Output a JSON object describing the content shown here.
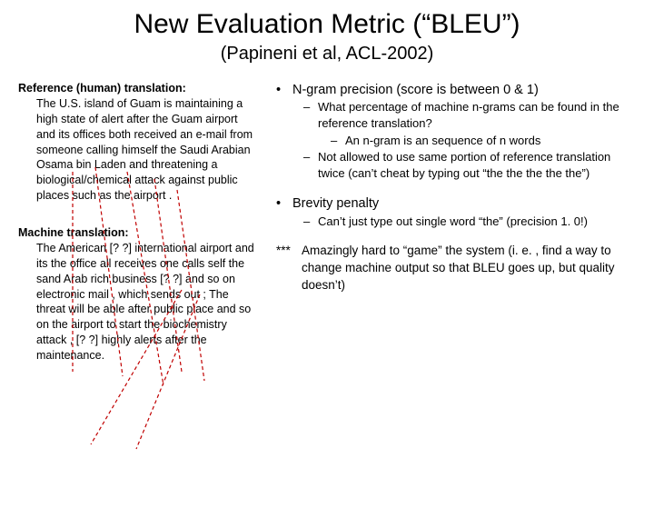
{
  "title": "New Evaluation Metric (“BLEU”)",
  "subtitle": "(Papineni et al, ACL-2002)",
  "left": {
    "ref_heading": "Reference (human) translation:",
    "ref_text": "The U.S. island of Guam is maintaining a high state of alert after the Guam airport and its offices both received an e-mail from someone calling himself the Saudi Arabian Osama bin Laden and threatening a biological/chemical attack against public places such as the airport .",
    "mt_heading": "Machine translation:",
    "mt_text": "The American [? ?] international airport and its the office all receives one calls self the sand Arab rich business [? ?] and so on electronic mail , which sends out ; The threat will be able after public place and so on the airport to start the biochemistry attack , [? ?] highly alerts after the maintenance."
  },
  "right": {
    "ngram": {
      "label": "N-gram precision (score is between 0 & 1)",
      "b1": "What percentage of machine n-grams can be found in the reference translation?",
      "b1a": "An n-gram is an sequence of n words",
      "b2": "Not allowed to use same portion of reference translation twice (can’t cheat by typing out “the the the the the”)"
    },
    "brevity": {
      "label": "Brevity penalty",
      "b1": "Can’t just type out single word “the” (precision 1. 0!)"
    },
    "note": "Amazingly hard to “game” the system (i. e. , find a way to change machine output so that BLEU goes up, but quality doesn’t)"
  },
  "lines": {
    "stroke": "#c00000",
    "dash": "4,3",
    "width": 1.2,
    "paths": [
      [
        60,
        100,
        60,
        320
      ],
      [
        85,
        95,
        115,
        325
      ],
      [
        120,
        100,
        160,
        335
      ],
      [
        150,
        108,
        180,
        320
      ],
      [
        175,
        120,
        205,
        330
      ],
      [
        180,
        230,
        80,
        400
      ],
      [
        200,
        235,
        130,
        405
      ]
    ]
  }
}
